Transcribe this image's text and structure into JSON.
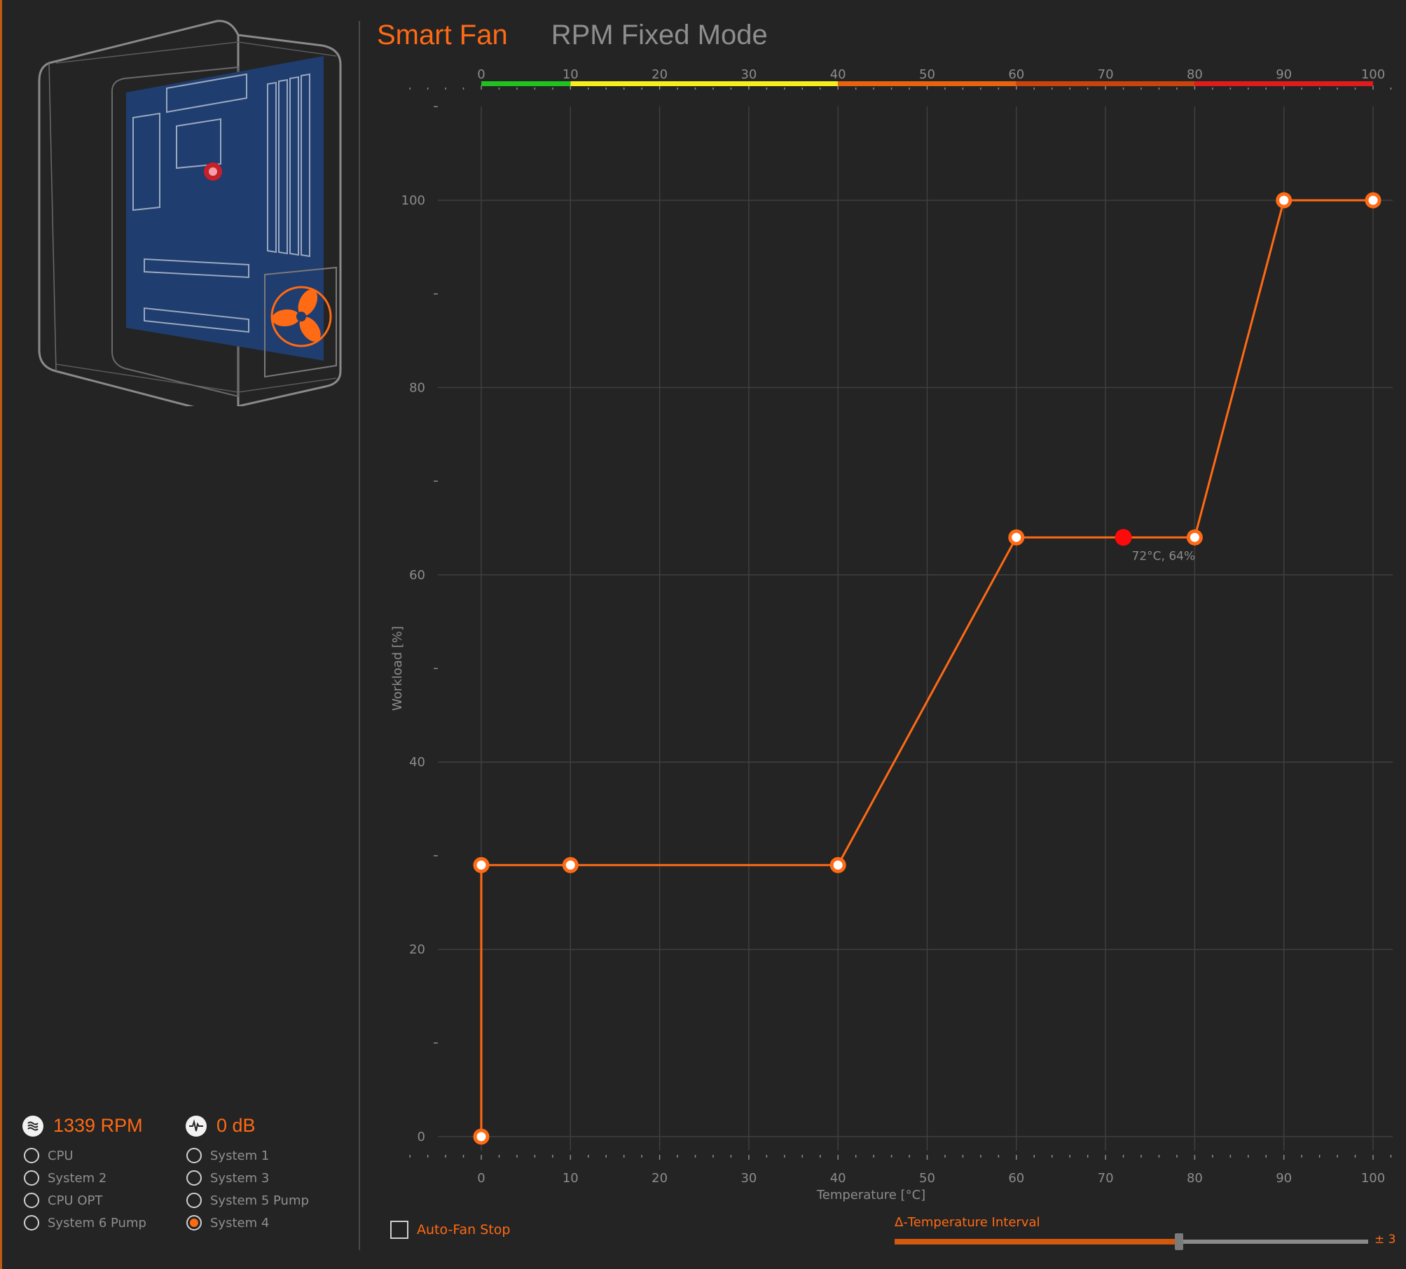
{
  "tabs": [
    {
      "label": "Smart Fan",
      "active": true
    },
    {
      "label": "RPM Fixed Mode",
      "active": false
    }
  ],
  "readouts": {
    "rpm": {
      "value": "1339 RPM",
      "icon": "fan-speed-icon"
    },
    "noise": {
      "value": "0 dB",
      "icon": "sound-wave-icon"
    }
  },
  "fans": {
    "left": [
      {
        "label": "CPU",
        "selected": false
      },
      {
        "label": "System 2",
        "selected": false
      },
      {
        "label": "CPU OPT",
        "selected": false
      },
      {
        "label": "System 6 Pump",
        "selected": false
      }
    ],
    "right": [
      {
        "label": "System 1",
        "selected": false
      },
      {
        "label": "System 3",
        "selected": false
      },
      {
        "label": "System 5 Pump",
        "selected": false
      },
      {
        "label": "System 4",
        "selected": true
      }
    ]
  },
  "colors": {
    "accent": "#ff6a14",
    "zone_cool": "#1fc21f",
    "zone_warm": "#f5ee1a",
    "zone_hot": "#e8620f",
    "zone_high": "#c9430d",
    "zone_critical": "#e01b1b",
    "current_point": "#ff0a0a",
    "board_blue": "#1f3d6e"
  },
  "chart_data": {
    "type": "line",
    "xlabel": "Temperature [°C]",
    "ylabel": "Workload [%]",
    "xlim": [
      0,
      100
    ],
    "ylim": [
      0,
      100
    ],
    "x_ticks": [
      0,
      10,
      20,
      30,
      40,
      50,
      60,
      70,
      80,
      90,
      100
    ],
    "y_ticks": [
      0,
      20,
      40,
      60,
      80,
      100
    ],
    "grid": true,
    "series": [
      {
        "x": [
          0,
          0,
          10,
          40,
          60,
          80,
          90,
          100
        ],
        "y": [
          0,
          29,
          29,
          29,
          64,
          64,
          100,
          100
        ]
      }
    ],
    "current_point": {
      "x": 72,
      "y": 64,
      "label": "72°C, 64%"
    },
    "temperature_zones": [
      {
        "from": 0,
        "to": 10,
        "color": "#1fc21f"
      },
      {
        "from": 10,
        "to": 40,
        "color": "#f5ee1a"
      },
      {
        "from": 40,
        "to": 60,
        "color": "#e8620f"
      },
      {
        "from": 60,
        "to": 80,
        "color": "#c9430d"
      },
      {
        "from": 80,
        "to": 100,
        "color": "#e01b1b"
      }
    ]
  },
  "controls": {
    "auto_fan_stop": {
      "label": "Auto-Fan Stop",
      "checked": false
    },
    "temperature_interval": {
      "label": "Δ-Temperature Interval",
      "value_label": "± 3",
      "fraction": 0.6
    }
  }
}
